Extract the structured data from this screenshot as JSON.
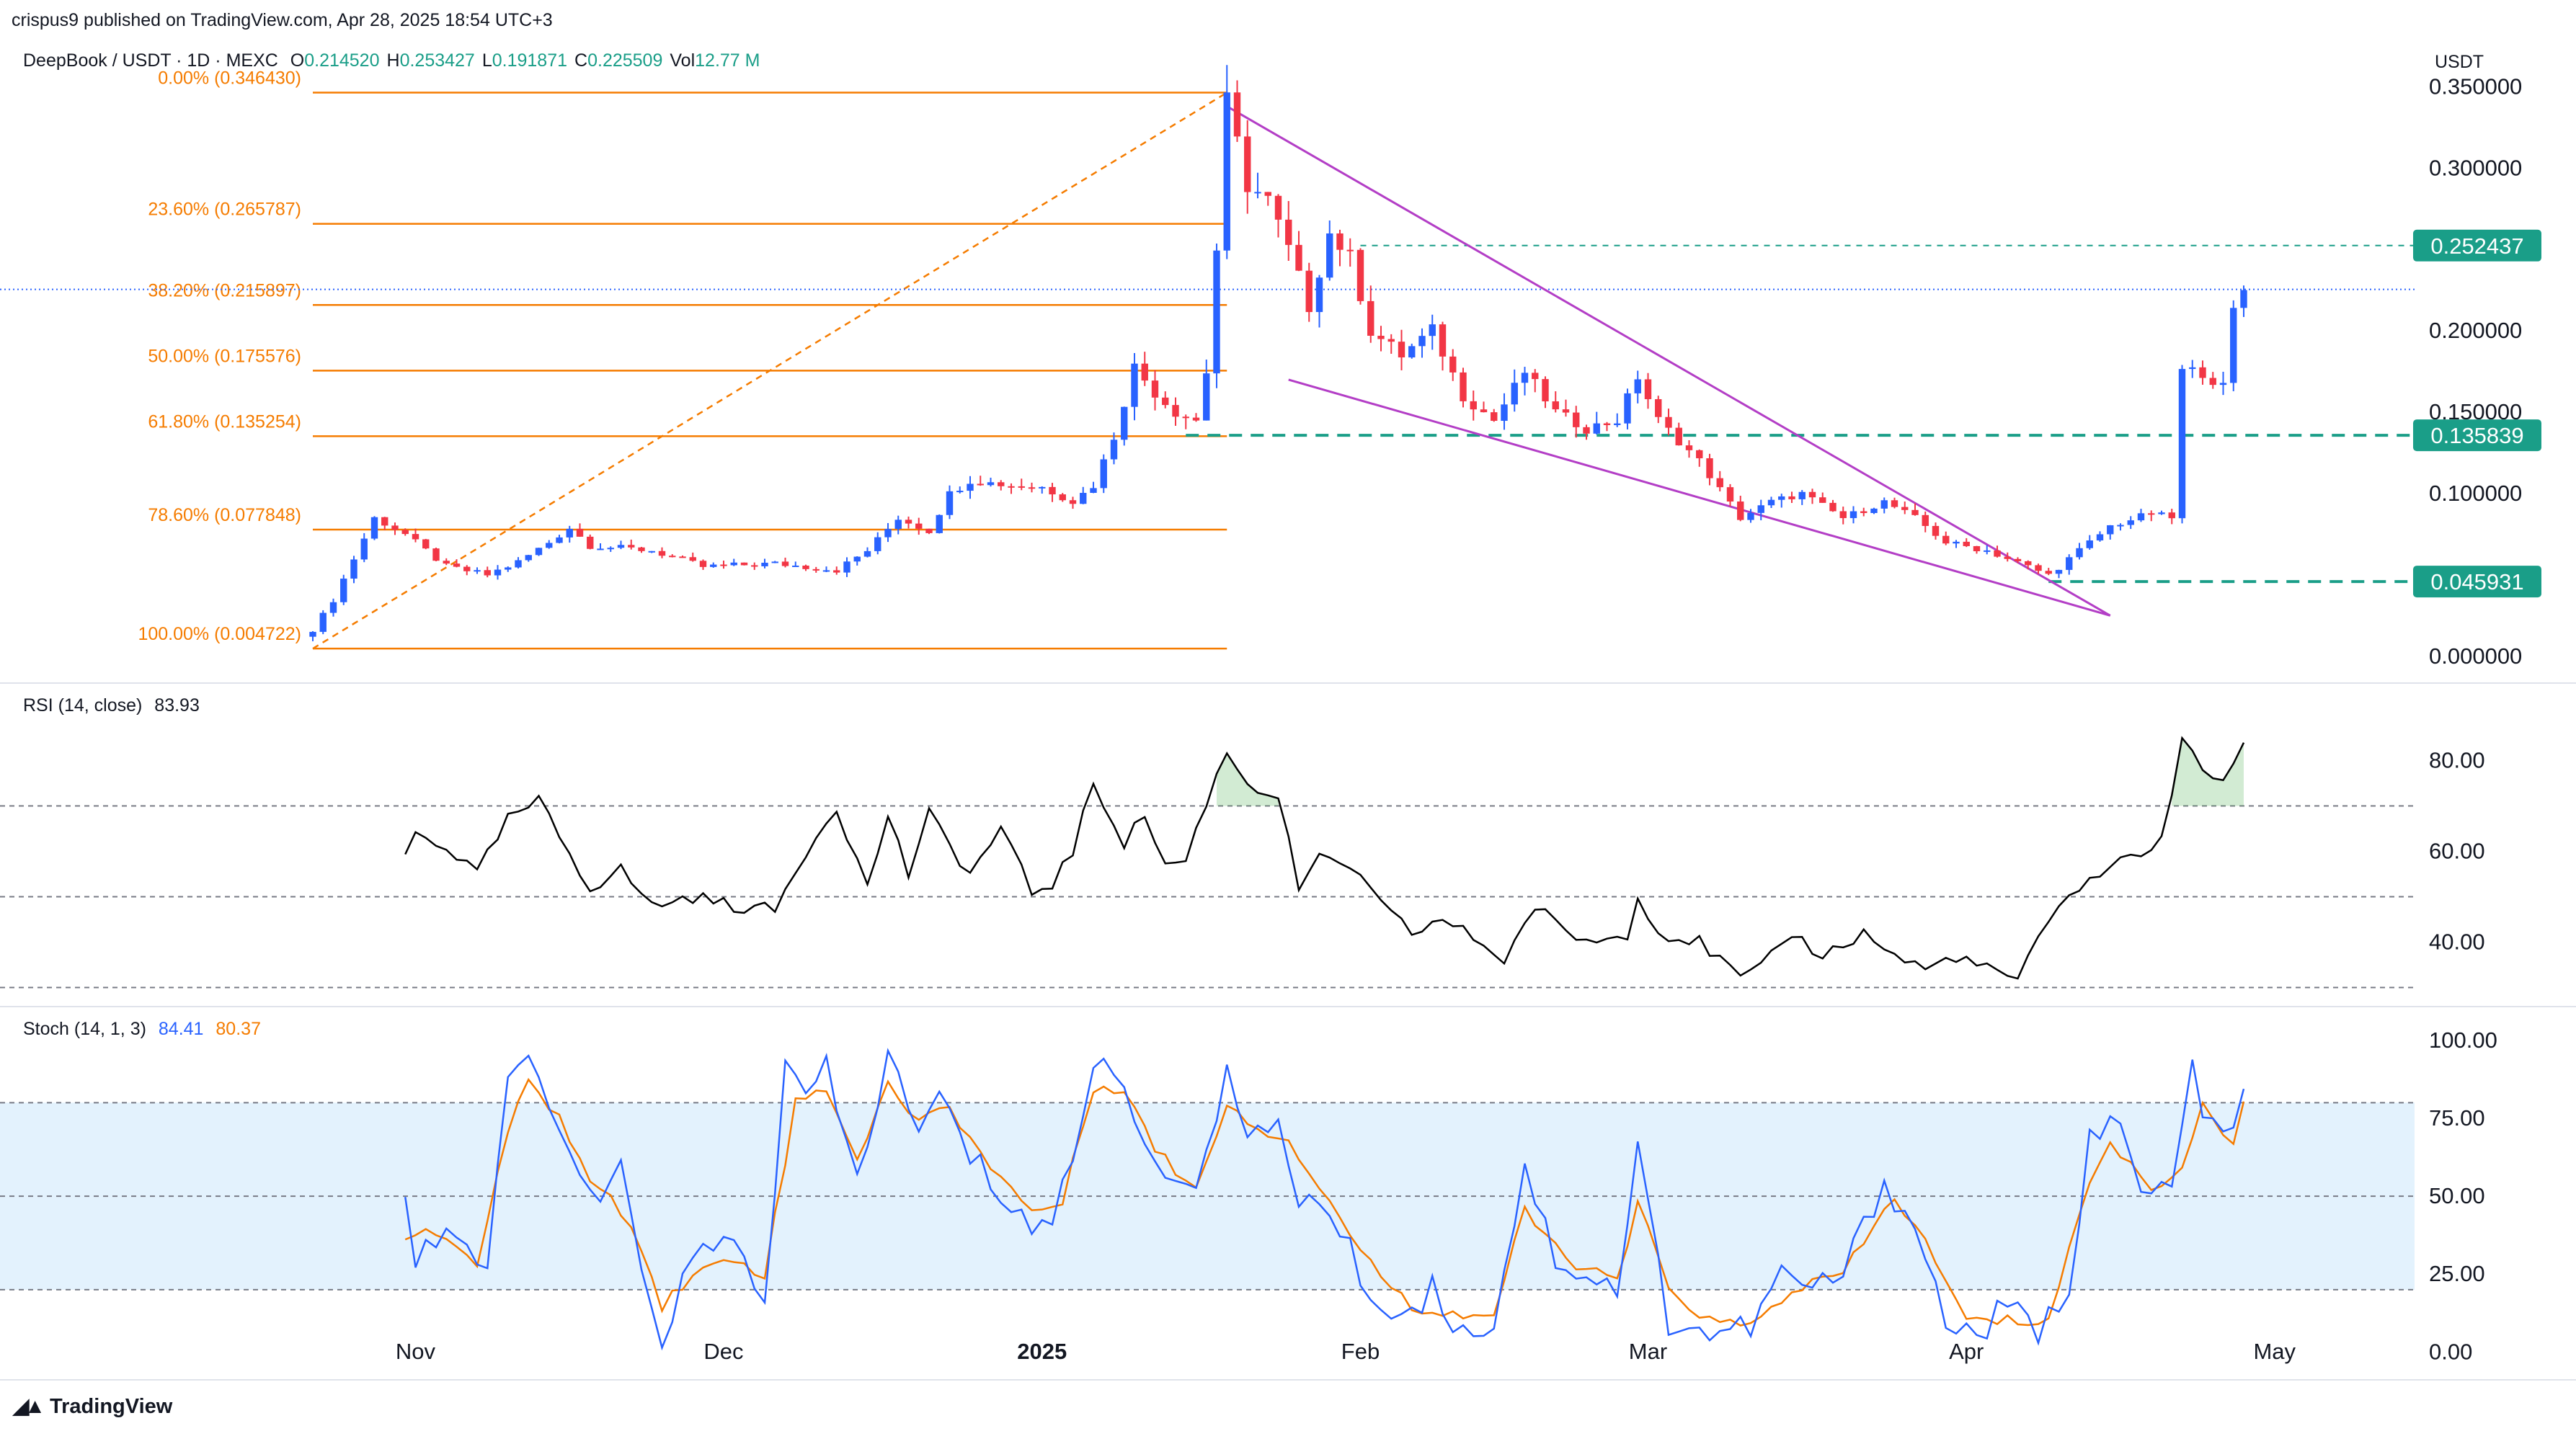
{
  "header": {
    "published_line": "crispus9 published on TradingView.com, Apr 28, 2025 18:54 UTC+3",
    "symbol_line": "DeepBook / USDT · 1D · MEXC",
    "ohlc": [
      {
        "label": "O",
        "value": "0.214520"
      },
      {
        "label": "H",
        "value": "0.253427"
      },
      {
        "label": "L",
        "value": "0.191871"
      },
      {
        "label": "C",
        "value": "0.225509"
      },
      {
        "label": "Vol",
        "value": "12.77 M"
      }
    ],
    "currency": "USDT"
  },
  "footer": {
    "brand": "TradingView"
  },
  "colors": {
    "up": "#2962ff",
    "down": "#f23645",
    "fib": "#f57c00",
    "wedge": "#b33ec6",
    "teal": "#1a9e88",
    "rsi": "#000000",
    "stoch_k": "#2962ff",
    "stoch_d": "#f57c00",
    "band": "#e3f2fd",
    "axis_text": "#131722",
    "grid": "#e0e3eb",
    "dash": "#787b86"
  },
  "chart_data": [
    {
      "type": "candlestick",
      "title": "DeepBook / USDT · 1D · MEXC",
      "x_tick_labels": [
        "Nov",
        "Dec",
        "2025",
        "Feb",
        "Mar",
        "Apr",
        "May"
      ],
      "x_ticks": [
        {
          "label": "Nov",
          "date": "2024-11-01"
        },
        {
          "label": "Dec",
          "date": "2024-12-01"
        },
        {
          "label": "2025",
          "date": "2025-01-01"
        },
        {
          "label": "Feb",
          "date": "2025-02-01"
        },
        {
          "label": "Mar",
          "date": "2025-03-01"
        },
        {
          "label": "Apr",
          "date": "2025-04-01"
        },
        {
          "label": "May",
          "date": "2025-05-01"
        }
      ],
      "y_tick_labels": [
        "0.350000",
        "0.300000",
        "0.200000",
        "0.150000",
        "0.100000",
        "0.000000"
      ],
      "ylim": [
        -0.0085,
        0.3635
      ],
      "close_keyframes": [
        [
          "2024-10-22",
          0.015
        ],
        [
          "2024-10-24",
          0.035
        ],
        [
          "2024-10-26",
          0.06
        ],
        [
          "2024-10-28",
          0.085
        ],
        [
          "2024-10-31",
          0.075
        ],
        [
          "2024-11-04",
          0.055
        ],
        [
          "2024-11-08",
          0.05
        ],
        [
          "2024-11-11",
          0.058
        ],
        [
          "2024-11-14",
          0.07
        ],
        [
          "2024-11-16",
          0.079
        ],
        [
          "2024-11-18",
          0.068
        ],
        [
          "2024-11-24",
          0.065
        ],
        [
          "2024-11-29",
          0.055
        ],
        [
          "2024-12-06",
          0.057
        ],
        [
          "2024-12-12",
          0.053
        ],
        [
          "2024-12-15",
          0.065
        ],
        [
          "2024-12-18",
          0.085
        ],
        [
          "2024-12-21",
          0.077
        ],
        [
          "2024-12-23",
          0.1
        ],
        [
          "2024-12-25",
          0.108
        ],
        [
          "2024-12-29",
          0.105
        ],
        [
          "2025-01-01",
          0.104
        ],
        [
          "2025-01-04",
          0.095
        ],
        [
          "2025-01-06",
          0.105
        ],
        [
          "2025-01-08",
          0.135
        ],
        [
          "2025-01-10",
          0.178
        ],
        [
          "2025-01-12",
          0.162
        ],
        [
          "2025-01-14",
          0.15
        ],
        [
          "2025-01-16",
          0.145
        ],
        [
          "2025-01-17",
          0.175
        ],
        [
          "2025-01-18",
          0.25
        ],
        [
          "2025-01-19",
          0.34
        ],
        [
          "2025-01-21",
          0.29
        ],
        [
          "2025-01-23",
          0.28
        ],
        [
          "2025-01-25",
          0.25
        ],
        [
          "2025-01-27",
          0.215
        ],
        [
          "2025-01-29",
          0.26
        ],
        [
          "2025-01-31",
          0.245
        ],
        [
          "2025-02-02",
          0.2
        ],
        [
          "2025-02-05",
          0.185
        ],
        [
          "2025-02-08",
          0.2
        ],
        [
          "2025-02-11",
          0.16
        ],
        [
          "2025-02-14",
          0.145
        ],
        [
          "2025-02-17",
          0.175
        ],
        [
          "2025-02-20",
          0.15
        ],
        [
          "2025-02-23",
          0.14
        ],
        [
          "2025-02-26",
          0.145
        ],
        [
          "2025-02-28",
          0.172
        ],
        [
          "2025-03-02",
          0.145
        ],
        [
          "2025-03-06",
          0.12
        ],
        [
          "2025-03-10",
          0.085
        ],
        [
          "2025-03-13",
          0.095
        ],
        [
          "2025-03-16",
          0.1
        ],
        [
          "2025-03-20",
          0.085
        ],
        [
          "2025-03-24",
          0.095
        ],
        [
          "2025-03-27",
          0.085
        ],
        [
          "2025-03-30",
          0.07
        ],
        [
          "2025-04-03",
          0.065
        ],
        [
          "2025-04-07",
          0.055
        ],
        [
          "2025-04-09",
          0.05
        ],
        [
          "2025-04-12",
          0.065
        ],
        [
          "2025-04-15",
          0.08
        ],
        [
          "2025-04-19",
          0.088
        ],
        [
          "2025-04-21",
          0.085
        ],
        [
          "2025-04-22",
          0.175
        ],
        [
          "2025-04-24",
          0.175
        ],
        [
          "2025-04-26",
          0.165
        ],
        [
          "2025-04-27",
          0.212
        ],
        [
          "2025-04-28",
          0.2255
        ]
      ],
      "fibonacci": [
        {
          "label": "0.00% (0.346430)",
          "price": 0.34643
        },
        {
          "label": "23.60% (0.265787)",
          "price": 0.265787
        },
        {
          "label": "38.20% (0.215897)",
          "price": 0.215897
        },
        {
          "label": "50.00% (0.175576)",
          "price": 0.175576
        },
        {
          "label": "61.80% (0.135254)",
          "price": 0.135254
        },
        {
          "label": "78.60% (0.077848)",
          "price": 0.077848
        },
        {
          "label": "100.00% (0.004722)",
          "price": 0.004722
        }
      ],
      "fib_range": {
        "start": "2024-10-22",
        "end": "2025-01-19"
      },
      "levels": [
        {
          "label": "0.252437",
          "price": 0.252437,
          "from": "2025-02-01"
        },
        {
          "label": "0.135839",
          "price": 0.135839,
          "from": "2025-01-15"
        },
        {
          "label": "0.045931",
          "price": 0.045931,
          "from": "2025-04-09"
        }
      ],
      "last_price": 0.2255,
      "wedge": {
        "upper": [
          [
            "2025-01-19",
            0.338
          ],
          [
            "2025-04-15",
            0.025
          ]
        ],
        "lower": [
          [
            "2025-01-25",
            0.17
          ],
          [
            "2025-04-15",
            0.025
          ]
        ]
      }
    },
    {
      "type": "line",
      "title": "RSI (14, close)",
      "value_label": "83.93",
      "y_tick_labels": [
        "80.00",
        "60.00",
        "40.00"
      ],
      "ylim": [
        28.5,
        88.8
      ],
      "bands": [
        70,
        50,
        30
      ],
      "x_start": "2024-10-31",
      "keyframes": [
        [
          "2024-10-31",
          59
        ],
        [
          "2024-11-01",
          64
        ],
        [
          "2024-11-04",
          61
        ],
        [
          "2024-11-07",
          55
        ],
        [
          "2024-11-10",
          67
        ],
        [
          "2024-11-13",
          71
        ],
        [
          "2024-11-18",
          52
        ],
        [
          "2024-11-21",
          56
        ],
        [
          "2024-11-24",
          48
        ],
        [
          "2024-11-28",
          50
        ],
        [
          "2024-12-02",
          48
        ],
        [
          "2024-12-06",
          47
        ],
        [
          "2024-12-09",
          60
        ],
        [
          "2024-12-12",
          70
        ],
        [
          "2024-12-15",
          52
        ],
        [
          "2024-12-17",
          68
        ],
        [
          "2024-12-19",
          55
        ],
        [
          "2024-12-21",
          68
        ],
        [
          "2024-12-25",
          55
        ],
        [
          "2024-12-28",
          65
        ],
        [
          "2024-12-31",
          51
        ],
        [
          "2025-01-02",
          53
        ],
        [
          "2025-01-04",
          60
        ],
        [
          "2025-01-06",
          75
        ],
        [
          "2025-01-09",
          62
        ],
        [
          "2025-01-11",
          68
        ],
        [
          "2025-01-13",
          57
        ],
        [
          "2025-01-15",
          58
        ],
        [
          "2025-01-17",
          71
        ],
        [
          "2025-01-19",
          82
        ],
        [
          "2025-01-21",
          75
        ],
        [
          "2025-01-24",
          72
        ],
        [
          "2025-01-26",
          52
        ],
        [
          "2025-01-28",
          58
        ],
        [
          "2025-01-31",
          57
        ],
        [
          "2025-02-03",
          48
        ],
        [
          "2025-02-06",
          42
        ],
        [
          "2025-02-09",
          45
        ],
        [
          "2025-02-12",
          41
        ],
        [
          "2025-02-15",
          36
        ],
        [
          "2025-02-18",
          48
        ],
        [
          "2025-02-21",
          42
        ],
        [
          "2025-02-24",
          40
        ],
        [
          "2025-02-27",
          42
        ],
        [
          "2025-02-28",
          51
        ],
        [
          "2025-03-02",
          42
        ],
        [
          "2025-03-06",
          40
        ],
        [
          "2025-03-10",
          32
        ],
        [
          "2025-03-12",
          34
        ],
        [
          "2025-03-15",
          42
        ],
        [
          "2025-03-18",
          37
        ],
        [
          "2025-03-22",
          42
        ],
        [
          "2025-03-25",
          37
        ],
        [
          "2025-03-28",
          34
        ],
        [
          "2025-03-31",
          37
        ],
        [
          "2025-04-03",
          34
        ],
        [
          "2025-04-06",
          32
        ],
        [
          "2025-04-08",
          40
        ],
        [
          "2025-04-11",
          51
        ],
        [
          "2025-04-14",
          55
        ],
        [
          "2025-04-17",
          59
        ],
        [
          "2025-04-20",
          62
        ],
        [
          "2025-04-22",
          85
        ],
        [
          "2025-04-24",
          77
        ],
        [
          "2025-04-26",
          76
        ],
        [
          "2025-04-28",
          83.93
        ]
      ]
    },
    {
      "type": "line",
      "title": "Stoch (14, 1, 3)",
      "values": {
        "k": "84.41",
        "d": "80.37"
      },
      "series": [
        {
          "name": "84.41"
        },
        {
          "name": "80.37"
        }
      ],
      "y_tick_labels": [
        "100.00",
        "75.00",
        "50.00",
        "25.00",
        "0.00"
      ],
      "ylim": [
        -4.3,
        105.5
      ],
      "bands": [
        80,
        50,
        20
      ],
      "x_start": "2024-10-31",
      "k_keyframes": [
        [
          "2024-10-31",
          52
        ],
        [
          "2024-11-01",
          30
        ],
        [
          "2024-11-04",
          40
        ],
        [
          "2024-11-06",
          35
        ],
        [
          "2024-11-08",
          22
        ],
        [
          "2024-11-10",
          90
        ],
        [
          "2024-11-12",
          92
        ],
        [
          "2024-11-14",
          83
        ],
        [
          "2024-11-16",
          60
        ],
        [
          "2024-11-18",
          48
        ],
        [
          "2024-11-21",
          57
        ],
        [
          "2024-11-23",
          25
        ],
        [
          "2024-11-25",
          5
        ],
        [
          "2024-11-28",
          30
        ],
        [
          "2024-12-02",
          35
        ],
        [
          "2024-12-05",
          18
        ],
        [
          "2024-12-07",
          90
        ],
        [
          "2024-12-09",
          82
        ],
        [
          "2024-12-11",
          90
        ],
        [
          "2024-12-14",
          55
        ],
        [
          "2024-12-17",
          95
        ],
        [
          "2024-12-20",
          70
        ],
        [
          "2024-12-22",
          82
        ],
        [
          "2024-12-25",
          63
        ],
        [
          "2024-12-27",
          55
        ],
        [
          "2024-12-31",
          40
        ],
        [
          "2025-01-02",
          43
        ],
        [
          "2025-01-04",
          60
        ],
        [
          "2025-01-06",
          95
        ],
        [
          "2025-01-09",
          85
        ],
        [
          "2025-01-11",
          70
        ],
        [
          "2025-01-14",
          50
        ],
        [
          "2025-01-16",
          57
        ],
        [
          "2025-01-19",
          90
        ],
        [
          "2025-01-21",
          65
        ],
        [
          "2025-01-24",
          75
        ],
        [
          "2025-01-26",
          50
        ],
        [
          "2025-01-29",
          45
        ],
        [
          "2025-02-01",
          25
        ],
        [
          "2025-02-04",
          10
        ],
        [
          "2025-02-08",
          20
        ],
        [
          "2025-02-11",
          6
        ],
        [
          "2025-02-14",
          10
        ],
        [
          "2025-02-17",
          60
        ],
        [
          "2025-02-20",
          30
        ],
        [
          "2025-02-23",
          25
        ],
        [
          "2025-02-26",
          20
        ],
        [
          "2025-02-28",
          65
        ],
        [
          "2025-03-03",
          10
        ],
        [
          "2025-03-07",
          6
        ],
        [
          "2025-03-11",
          8
        ],
        [
          "2025-03-14",
          25
        ],
        [
          "2025-03-17",
          20
        ],
        [
          "2025-03-20",
          25
        ],
        [
          "2025-03-24",
          55
        ],
        [
          "2025-03-27",
          40
        ],
        [
          "2025-03-30",
          10
        ],
        [
          "2025-04-02",
          5
        ],
        [
          "2025-04-05",
          15
        ],
        [
          "2025-04-08",
          5
        ],
        [
          "2025-04-11",
          22
        ],
        [
          "2025-04-13",
          70
        ],
        [
          "2025-04-16",
          72
        ],
        [
          "2025-04-18",
          50
        ],
        [
          "2025-04-21",
          53
        ],
        [
          "2025-04-23",
          90
        ],
        [
          "2025-04-25",
          70
        ],
        [
          "2025-04-27",
          70
        ],
        [
          "2025-04-28",
          84.41
        ]
      ],
      "d_keyframes": [
        [
          "2024-10-31",
          38
        ],
        [
          "2024-11-04",
          37
        ],
        [
          "2024-11-07",
          28
        ],
        [
          "2024-11-10",
          70
        ],
        [
          "2024-11-12",
          88
        ],
        [
          "2024-11-15",
          75
        ],
        [
          "2024-11-18",
          55
        ],
        [
          "2024-11-22",
          42
        ],
        [
          "2024-11-25",
          15
        ],
        [
          "2024-11-28",
          25
        ],
        [
          "2024-12-02",
          30
        ],
        [
          "2024-12-05",
          25
        ],
        [
          "2024-12-08",
          80
        ],
        [
          "2024-12-11",
          85
        ],
        [
          "2024-12-14",
          62
        ],
        [
          "2024-12-17",
          85
        ],
        [
          "2024-12-20",
          75
        ],
        [
          "2024-12-23",
          78
        ],
        [
          "2024-12-27",
          60
        ],
        [
          "2024-12-31",
          45
        ],
        [
          "2025-01-03",
          48
        ],
        [
          "2025-01-06",
          85
        ],
        [
          "2025-01-09",
          85
        ],
        [
          "2025-01-12",
          65
        ],
        [
          "2025-01-16",
          52
        ],
        [
          "2025-01-19",
          80
        ],
        [
          "2025-01-22",
          72
        ],
        [
          "2025-01-25",
          68
        ],
        [
          "2025-01-29",
          48
        ],
        [
          "2025-02-02",
          28
        ],
        [
          "2025-02-06",
          15
        ],
        [
          "2025-02-10",
          12
        ],
        [
          "2025-02-14",
          12
        ],
        [
          "2025-02-17",
          45
        ],
        [
          "2025-02-21",
          30
        ],
        [
          "2025-02-26",
          22
        ],
        [
          "2025-02-28",
          48
        ],
        [
          "2025-03-03",
          20
        ],
        [
          "2025-03-07",
          10
        ],
        [
          "2025-03-11",
          8
        ],
        [
          "2025-03-15",
          20
        ],
        [
          "2025-03-20",
          25
        ],
        [
          "2025-03-25",
          50
        ],
        [
          "2025-03-28",
          35
        ],
        [
          "2025-04-01",
          10
        ],
        [
          "2025-04-05",
          10
        ],
        [
          "2025-04-09",
          10
        ],
        [
          "2025-04-12",
          45
        ],
        [
          "2025-04-15",
          68
        ],
        [
          "2025-04-19",
          52
        ],
        [
          "2025-04-22",
          60
        ],
        [
          "2025-04-24",
          78
        ],
        [
          "2025-04-27",
          68
        ],
        [
          "2025-04-28",
          80.37
        ]
      ]
    }
  ]
}
